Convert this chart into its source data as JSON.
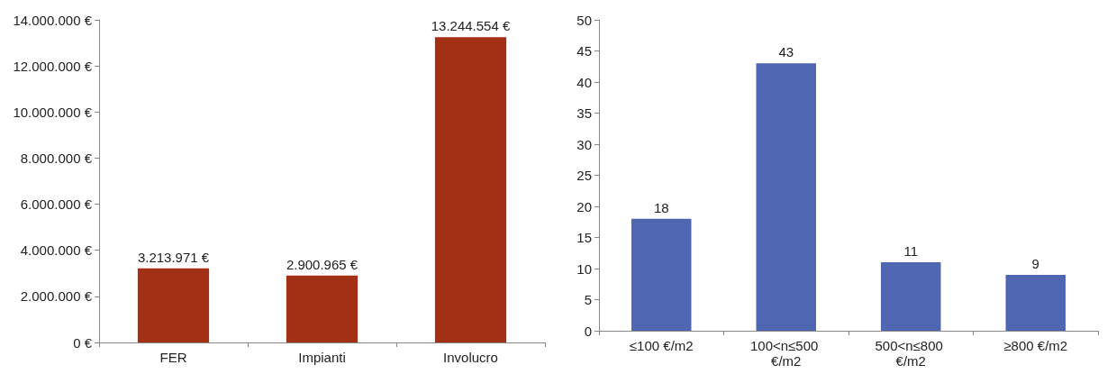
{
  "chart_data": [
    {
      "type": "bar",
      "categories": [
        "FER",
        "Impianti",
        "Involucro"
      ],
      "values": [
        3213971,
        2900965,
        13244554
      ],
      "color": "#a33015",
      "value_labels": [
        "3.213.971 €",
        "2.900.965 €",
        "13.244.554 €"
      ],
      "ylim": [
        0,
        14000000
      ],
      "yticks": [
        {
          "value": 0,
          "label": "0 €"
        },
        {
          "value": 2000000,
          "label": "2.000.000 €"
        },
        {
          "value": 4000000,
          "label": "4.000.000 €"
        },
        {
          "value": 6000000,
          "label": "6.000.000 €"
        },
        {
          "value": 8000000,
          "label": "8.000.000 €"
        },
        {
          "value": 10000000,
          "label": "10.000.000 €"
        },
        {
          "value": 12000000,
          "label": "12.000.000 €"
        },
        {
          "value": 14000000,
          "label": "14.000.000 €"
        }
      ],
      "grid": false
    },
    {
      "type": "bar",
      "categories": [
        "≤100 €/m2",
        "100<n≤500 €/m2",
        "500<n≤800 €/m2",
        "≥800 €/m2"
      ],
      "values": [
        18,
        43,
        11,
        9
      ],
      "color": "#4f67b3",
      "data_labels": true,
      "ylim": [
        0,
        50
      ],
      "yticks": [
        0,
        5,
        10,
        15,
        20,
        25,
        30,
        35,
        40,
        45,
        50
      ],
      "grid": false
    }
  ]
}
